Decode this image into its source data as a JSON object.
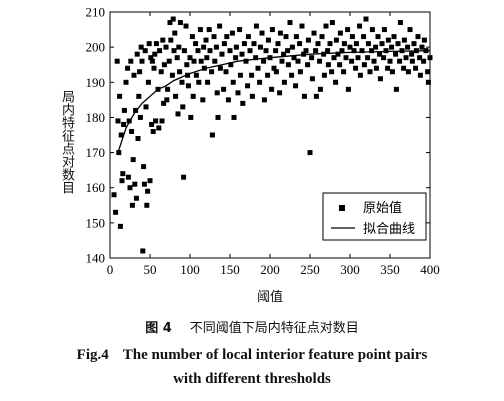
{
  "chart_data": {
    "type": "scatter",
    "xlabel": "阈值",
    "ylabel": "局内特征点对数目",
    "xlim": [
      0,
      400
    ],
    "ylim": [
      140,
      210
    ],
    "xticks": [
      "0",
      "50",
      "100",
      "150",
      "200",
      "250",
      "300",
      "350",
      "400"
    ],
    "yticks": [
      "140",
      "150",
      "160",
      "170",
      "180",
      "190",
      "200",
      "210"
    ],
    "legend_position": "bottom-right",
    "series": [
      {
        "name": "原始值",
        "kind": "marker",
        "points": [
          [
            5,
            158
          ],
          [
            7,
            153
          ],
          [
            9,
            196
          ],
          [
            10,
            179
          ],
          [
            11,
            170
          ],
          [
            12,
            186
          ],
          [
            13,
            149
          ],
          [
            14,
            175
          ],
          [
            15,
            162
          ],
          [
            16,
            164
          ],
          [
            17,
            178
          ],
          [
            18,
            182
          ],
          [
            20,
            190
          ],
          [
            22,
            194
          ],
          [
            23,
            163
          ],
          [
            24,
            179
          ],
          [
            25,
            160
          ],
          [
            26,
            196
          ],
          [
            27,
            176
          ],
          [
            28,
            155
          ],
          [
            29,
            168
          ],
          [
            30,
            192
          ],
          [
            31,
            161
          ],
          [
            32,
            182
          ],
          [
            33,
            157
          ],
          [
            34,
            198
          ],
          [
            35,
            174
          ],
          [
            36,
            186
          ],
          [
            37,
            193
          ],
          [
            38,
            180
          ],
          [
            39,
            200
          ],
          [
            40,
            196
          ],
          [
            41,
            142
          ],
          [
            42,
            166
          ],
          [
            43,
            161
          ],
          [
            44,
            199
          ],
          [
            45,
            183
          ],
          [
            46,
            155
          ],
          [
            47,
            159
          ],
          [
            48,
            190
          ],
          [
            49,
            201
          ],
          [
            50,
            162
          ],
          [
            51,
            197
          ],
          [
            52,
            178
          ],
          [
            53,
            196
          ],
          [
            54,
            176
          ],
          [
            55,
            194
          ],
          [
            56,
            198
          ],
          [
            57,
            179
          ],
          [
            58,
            201
          ],
          [
            60,
            188
          ],
          [
            61,
            177
          ],
          [
            62,
            199
          ],
          [
            64,
            193
          ],
          [
            65,
            179
          ],
          [
            66,
            202
          ],
          [
            67,
            184
          ],
          [
            68,
            195
          ],
          [
            70,
            200
          ],
          [
            71,
            185
          ],
          [
            72,
            188
          ],
          [
            74,
            196
          ],
          [
            75,
            207
          ],
          [
            76,
            202
          ],
          [
            78,
            192
          ],
          [
            79,
            208
          ],
          [
            80,
            199
          ],
          [
            81,
            204
          ],
          [
            82,
            186
          ],
          [
            84,
            197
          ],
          [
            85,
            181
          ],
          [
            86,
            200
          ],
          [
            87,
            193
          ],
          [
            88,
            207
          ],
          [
            90,
            190
          ],
          [
            91,
            183
          ],
          [
            92,
            163
          ],
          [
            93,
            199
          ],
          [
            95,
            206
          ],
          [
            96,
            195
          ],
          [
            97,
            192
          ],
          [
            98,
            189
          ],
          [
            100,
            197
          ],
          [
            101,
            180
          ],
          [
            103,
            203
          ],
          [
            104,
            186
          ],
          [
            105,
            196
          ],
          [
            107,
            201
          ],
          [
            108,
            192
          ],
          [
            110,
            199
          ],
          [
            111,
            190
          ],
          [
            113,
            205
          ],
          [
            114,
            196
          ],
          [
            116,
            185
          ],
          [
            117,
            200
          ],
          [
            118,
            194
          ],
          [
            120,
            202
          ],
          [
            121,
            197
          ],
          [
            122,
            190
          ],
          [
            124,
            205
          ],
          [
            125,
            199
          ],
          [
            127,
            193
          ],
          [
            128,
            175
          ],
          [
            130,
            203
          ],
          [
            131,
            196
          ],
          [
            133,
            200
          ],
          [
            134,
            187
          ],
          [
            135,
            180
          ],
          [
            137,
            206
          ],
          [
            138,
            194
          ],
          [
            140,
            198
          ],
          [
            142,
            188
          ],
          [
            143,
            201
          ],
          [
            145,
            193
          ],
          [
            146,
            203
          ],
          [
            148,
            185
          ],
          [
            150,
            199
          ],
          [
            151,
            195
          ],
          [
            153,
            204
          ],
          [
            154,
            190
          ],
          [
            155,
            180
          ],
          [
            157,
            197
          ],
          [
            158,
            200
          ],
          [
            160,
            187
          ],
          [
            162,
            205
          ],
          [
            163,
            192
          ],
          [
            165,
            198
          ],
          [
            166,
            184
          ],
          [
            168,
            201
          ],
          [
            170,
            196
          ],
          [
            172,
            189
          ],
          [
            173,
            203
          ],
          [
            175,
            199
          ],
          [
            177,
            192
          ],
          [
            178,
            186
          ],
          [
            180,
            201
          ],
          [
            182,
            197
          ],
          [
            183,
            206
          ],
          [
            185,
            194
          ],
          [
            187,
            190
          ],
          [
            188,
            200
          ],
          [
            190,
            204
          ],
          [
            192,
            196
          ],
          [
            193,
            185
          ],
          [
            195,
            199
          ],
          [
            197,
            192
          ],
          [
            198,
            202
          ],
          [
            200,
            197
          ],
          [
            202,
            188
          ],
          [
            203,
            205
          ],
          [
            205,
            194
          ],
          [
            207,
            199
          ],
          [
            208,
            193
          ],
          [
            210,
            201
          ],
          [
            212,
            187
          ],
          [
            213,
            204
          ],
          [
            215,
            196
          ],
          [
            217,
            198
          ],
          [
            218,
            190
          ],
          [
            220,
            203
          ],
          [
            222,
            199
          ],
          [
            223,
            195
          ],
          [
            225,
            207
          ],
          [
            227,
            192
          ],
          [
            228,
            200
          ],
          [
            230,
            197
          ],
          [
            232,
            189
          ],
          [
            233,
            203
          ],
          [
            235,
            196
          ],
          [
            237,
            201
          ],
          [
            238,
            193
          ],
          [
            240,
            206
          ],
          [
            242,
            198
          ],
          [
            243,
            186
          ],
          [
            245,
            199
          ],
          [
            247,
            195
          ],
          [
            248,
            202
          ],
          [
            250,
            170
          ],
          [
            252,
            197
          ],
          [
            253,
            191
          ],
          [
            255,
            204
          ],
          [
            257,
            199
          ],
          [
            258,
            186
          ],
          [
            260,
            201
          ],
          [
            262,
            196
          ],
          [
            263,
            188
          ],
          [
            265,
            203
          ],
          [
            267,
            198
          ],
          [
            268,
            192
          ],
          [
            270,
            206
          ],
          [
            272,
            199
          ],
          [
            273,
            195
          ],
          [
            275,
            201
          ],
          [
            277,
            193
          ],
          [
            278,
            207
          ],
          [
            280,
            197
          ],
          [
            282,
            190
          ],
          [
            283,
            202
          ],
          [
            285,
            198
          ],
          [
            287,
            195
          ],
          [
            288,
            204
          ],
          [
            290,
            199
          ],
          [
            292,
            193
          ],
          [
            293,
            201
          ],
          [
            295,
            197
          ],
          [
            297,
            205
          ],
          [
            298,
            188
          ],
          [
            300,
            200
          ],
          [
            302,
            196
          ],
          [
            303,
            203
          ],
          [
            305,
            199
          ],
          [
            307,
            194
          ],
          [
            308,
            201
          ],
          [
            310,
            197
          ],
          [
            312,
            206
          ],
          [
            313,
            192
          ],
          [
            315,
            199
          ],
          [
            317,
            203
          ],
          [
            318,
            195
          ],
          [
            320,
            208
          ],
          [
            322,
            197
          ],
          [
            323,
            201
          ],
          [
            325,
            193
          ],
          [
            327,
            199
          ],
          [
            328,
            205
          ],
          [
            330,
            196
          ],
          [
            332,
            200
          ],
          [
            333,
            194
          ],
          [
            335,
            203
          ],
          [
            337,
            198
          ],
          [
            338,
            191
          ],
          [
            340,
            201
          ],
          [
            342,
            197
          ],
          [
            343,
            205
          ],
          [
            345,
            199
          ],
          [
            347,
            194
          ],
          [
            348,
            202
          ],
          [
            350,
            196
          ],
          [
            352,
            200
          ],
          [
            353,
            193
          ],
          [
            355,
            203
          ],
          [
            357,
            198
          ],
          [
            358,
            188
          ],
          [
            360,
            201
          ],
          [
            362,
            196
          ],
          [
            363,
            207
          ],
          [
            365,
            199
          ],
          [
            367,
            194
          ],
          [
            368,
            202
          ],
          [
            370,
            197
          ],
          [
            372,
            200
          ],
          [
            373,
            193
          ],
          [
            375,
            205
          ],
          [
            377,
            198
          ],
          [
            378,
            196
          ],
          [
            380,
            201
          ],
          [
            382,
            194
          ],
          [
            383,
            199
          ],
          [
            385,
            203
          ],
          [
            387,
            197
          ],
          [
            388,
            192
          ],
          [
            390,
            200
          ],
          [
            392,
            196
          ],
          [
            393,
            202
          ],
          [
            395,
            199
          ],
          [
            397,
            193
          ],
          [
            398,
            190
          ],
          [
            400,
            197
          ]
        ]
      },
      {
        "name": "拟合曲线",
        "kind": "line",
        "x": [
          10,
          20,
          30,
          40,
          50,
          60,
          70,
          80,
          90,
          100,
          120,
          140,
          160,
          180,
          200,
          250,
          300,
          350,
          400
        ],
        "y": [
          170,
          177,
          181,
          184,
          186,
          188,
          189,
          190.5,
          191.5,
          192.5,
          194,
          195,
          196,
          196.5,
          197,
          198,
          198.5,
          198.8,
          199
        ]
      }
    ]
  },
  "caption": {
    "cn_number": "图 4",
    "cn_text": "不同阈值下局内特征点对数目",
    "en_number": "Fig.4",
    "en_line1": "The number of local interior feature point pairs",
    "en_line2": "with different thresholds"
  }
}
